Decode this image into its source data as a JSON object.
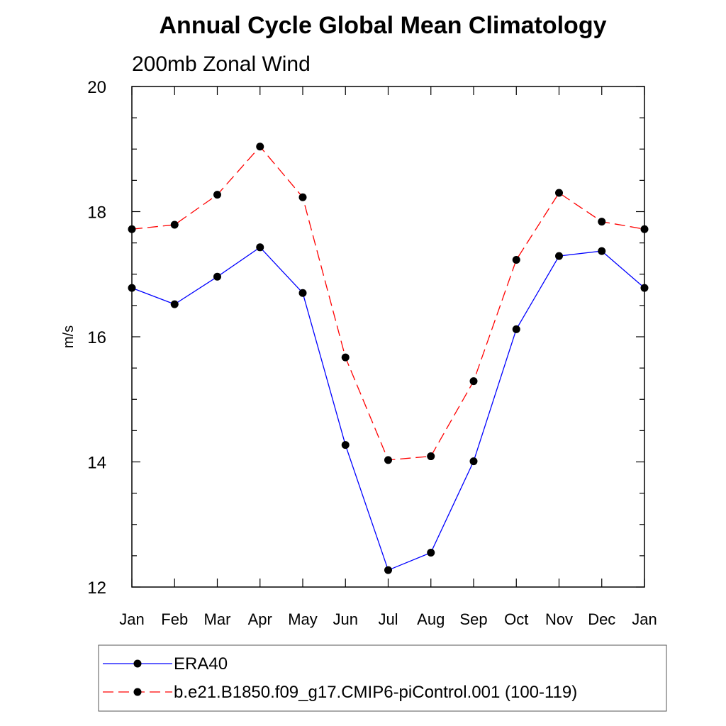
{
  "chart_data": {
    "type": "line",
    "title": "Annual Cycle Global Mean Climatology",
    "subtitle": "200mb Zonal Wind",
    "xlabel": "",
    "ylabel": "m/s",
    "categories": [
      "Jan",
      "Feb",
      "Mar",
      "Apr",
      "May",
      "Jun",
      "Jul",
      "Aug",
      "Sep",
      "Oct",
      "Nov",
      "Dec",
      "Jan"
    ],
    "ylim": [
      12,
      20
    ],
    "yticks": [
      "12",
      "14",
      "16",
      "18",
      "20"
    ],
    "grid": false,
    "legend_position": "bottom",
    "series": [
      {
        "name": "ERA40",
        "color": "#0000ff",
        "line_style": "solid",
        "marker": "filled-circle",
        "values": [
          16.78,
          16.52,
          16.96,
          17.43,
          16.7,
          14.27,
          12.27,
          12.55,
          14.01,
          16.12,
          17.29,
          17.37,
          16.78
        ]
      },
      {
        "name": "b.e21.B1850.f09_g17.CMIP6-piControl.001 (100-119)",
        "color": "#ff0000",
        "line_style": "dashed",
        "marker": "filled-circle",
        "values": [
          17.72,
          17.79,
          18.27,
          19.04,
          18.23,
          15.67,
          14.03,
          14.09,
          15.29,
          17.23,
          18.3,
          17.84,
          17.72
        ]
      }
    ]
  }
}
